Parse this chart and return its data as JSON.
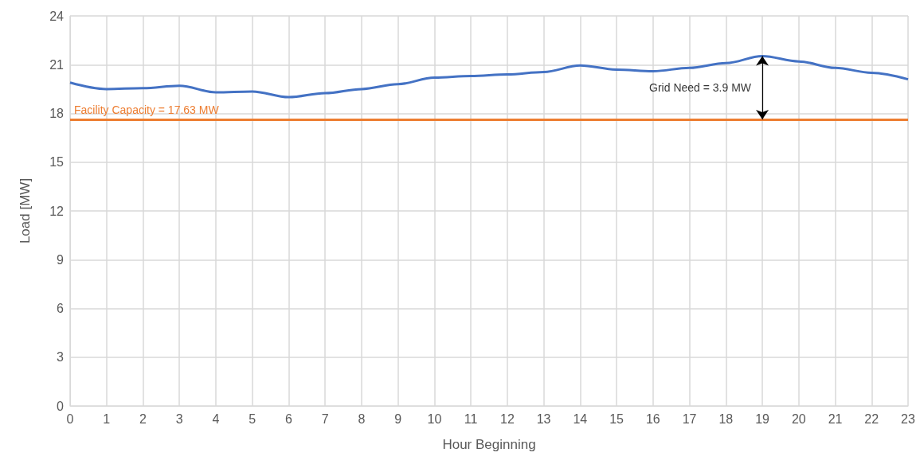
{
  "chart_data": {
    "type": "line",
    "xlabel": "Hour Beginning",
    "ylabel": "Load [MW]",
    "x": [
      0,
      1,
      2,
      3,
      4,
      5,
      6,
      7,
      8,
      9,
      10,
      11,
      12,
      13,
      14,
      15,
      16,
      17,
      18,
      19,
      20,
      21,
      22,
      23
    ],
    "series": [
      {
        "color": "#4472c4",
        "values": [
          19.9,
          19.5,
          19.55,
          19.7,
          19.3,
          19.35,
          19.0,
          19.25,
          19.5,
          19.8,
          20.2,
          20.3,
          20.4,
          20.55,
          20.95,
          20.7,
          20.6,
          20.8,
          21.1,
          21.53,
          21.2,
          20.8,
          20.5,
          20.1
        ]
      }
    ],
    "xlim": [
      0,
      23
    ],
    "xticks": [
      0,
      1,
      2,
      3,
      4,
      5,
      6,
      7,
      8,
      9,
      10,
      11,
      12,
      13,
      14,
      15,
      16,
      17,
      18,
      19,
      20,
      21,
      22,
      23
    ],
    "ylim": [
      0,
      24
    ],
    "yticks": [
      0,
      3,
      6,
      9,
      12,
      15,
      18,
      21,
      24
    ],
    "grid": true,
    "marker": "none",
    "line_style": "solid",
    "ref_lines": [
      {
        "axis": "y",
        "value": 17.63,
        "label": "Facility Capacity = 17.63 MW",
        "color": "#ed7d31"
      }
    ],
    "annotations": [
      "Grid Need = 3.9 MW"
    ]
  }
}
